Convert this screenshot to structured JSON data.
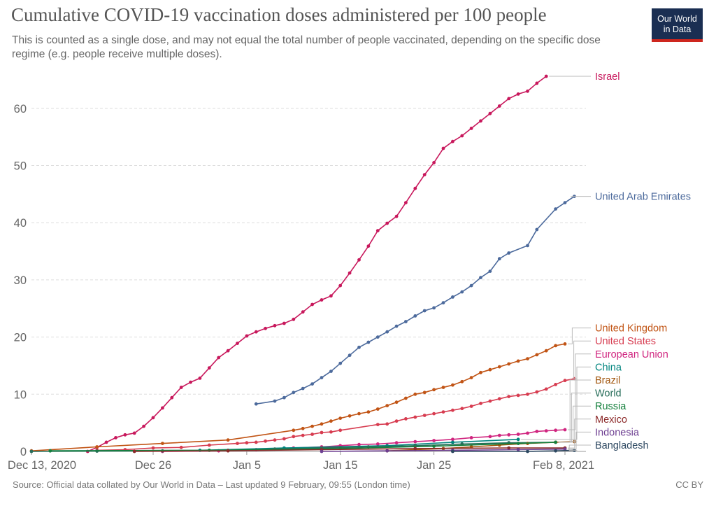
{
  "header": {
    "title": "Cumulative COVID-19 vaccination doses administered per 100 people",
    "subtitle": "This is counted as a single dose, and may not equal the total number of people vaccinated, depending on the specific dose regime (e.g. people receive multiple doses)."
  },
  "logo": {
    "line1": "Our World",
    "line2": "in Data"
  },
  "footer": {
    "source": "Source: Official data collated by Our World in Data – Last updated 9 February, 09:55 (London time)",
    "license": "CC BY"
  },
  "chart_data": {
    "type": "line",
    "title": "Cumulative COVID-19 vaccination doses administered per 100 people",
    "xlabel": "",
    "ylabel": "",
    "x_range": [
      "2020-12-13",
      "2021-02-08"
    ],
    "ylim": [
      0,
      66
    ],
    "yticks": [
      0,
      10,
      20,
      30,
      40,
      50,
      60
    ],
    "xticks": [
      {
        "date": "2020-12-13",
        "label": "Dec 13, 2020"
      },
      {
        "date": "2020-12-26",
        "label": "Dec 26"
      },
      {
        "date": "2021-01-05",
        "label": "Jan 5"
      },
      {
        "date": "2021-01-15",
        "label": "Jan 15"
      },
      {
        "date": "2021-01-25",
        "label": "Jan 25"
      },
      {
        "date": "2021-02-08",
        "label": "Feb 8, 2021"
      }
    ],
    "grid": true,
    "legend": "right, labels at line ends",
    "series": [
      {
        "name": "Israel",
        "color": "#c8185c",
        "start": "2020-12-19",
        "values": [
          0,
          0.7,
          1.6,
          2.4,
          2.9,
          3.2,
          4.4,
          5.9,
          7.6,
          9.4,
          11.2,
          12.1,
          12.8,
          14.6,
          16.4,
          17.6,
          18.9,
          20.2,
          20.9,
          21.5,
          22.0,
          22.4,
          23.1,
          24.4,
          25.7,
          26.5,
          27.2,
          29.0,
          31.2,
          33.5,
          35.9,
          38.6,
          39.9,
          41.1,
          43.5,
          46.0,
          48.4,
          50.5,
          53.0,
          54.2,
          55.2,
          56.5,
          57.8,
          59.1,
          60.4,
          61.7,
          62.5,
          63.0,
          64.4,
          65.6
        ]
      },
      {
        "name": "United Arab Emirates",
        "color": "#4c6a9c",
        "points": [
          [
            "2021-01-06",
            8.3
          ],
          [
            "2021-01-08",
            8.8
          ],
          [
            "2021-01-09",
            9.4
          ],
          [
            "2021-01-10",
            10.3
          ],
          [
            "2021-01-11",
            11.0
          ],
          [
            "2021-01-12",
            11.8
          ],
          [
            "2021-01-13",
            12.9
          ],
          [
            "2021-01-14",
            14.0
          ],
          [
            "2021-01-15",
            15.4
          ],
          [
            "2021-01-16",
            16.8
          ],
          [
            "2021-01-17",
            18.2
          ],
          [
            "2021-01-18",
            19.1
          ],
          [
            "2021-01-19",
            20.0
          ],
          [
            "2021-01-20",
            20.9
          ],
          [
            "2021-01-21",
            21.9
          ],
          [
            "2021-01-22",
            22.7
          ],
          [
            "2021-01-23",
            23.7
          ],
          [
            "2021-01-24",
            24.6
          ],
          [
            "2021-01-25",
            25.1
          ],
          [
            "2021-01-26",
            26.0
          ],
          [
            "2021-01-27",
            27.0
          ],
          [
            "2021-01-28",
            27.9
          ],
          [
            "2021-01-29",
            29.0
          ],
          [
            "2021-01-30",
            30.4
          ],
          [
            "2021-01-31",
            31.5
          ],
          [
            "2021-02-01",
            33.7
          ],
          [
            "2021-02-02",
            34.7
          ],
          [
            "2021-02-04",
            36.0
          ],
          [
            "2021-02-05",
            38.8
          ],
          [
            "2021-02-07",
            42.4
          ],
          [
            "2021-02-08",
            43.5
          ],
          [
            "2021-02-09",
            44.6
          ]
        ]
      },
      {
        "name": "United Kingdom",
        "color": "#c15415",
        "points": [
          [
            "2020-12-13",
            0.1
          ],
          [
            "2020-12-20",
            0.8
          ],
          [
            "2020-12-27",
            1.4
          ],
          [
            "2021-01-03",
            2.0
          ],
          [
            "2021-01-10",
            3.7
          ],
          [
            "2021-01-11",
            4.0
          ],
          [
            "2021-01-12",
            4.4
          ],
          [
            "2021-01-13",
            4.8
          ],
          [
            "2021-01-14",
            5.3
          ],
          [
            "2021-01-15",
            5.8
          ],
          [
            "2021-01-16",
            6.2
          ],
          [
            "2021-01-17",
            6.6
          ],
          [
            "2021-01-18",
            6.9
          ],
          [
            "2021-01-19",
            7.4
          ],
          [
            "2021-01-20",
            8.0
          ],
          [
            "2021-01-21",
            8.6
          ],
          [
            "2021-01-22",
            9.3
          ],
          [
            "2021-01-23",
            10.0
          ],
          [
            "2021-01-24",
            10.3
          ],
          [
            "2021-01-25",
            10.8
          ],
          [
            "2021-01-26",
            11.2
          ],
          [
            "2021-01-27",
            11.6
          ],
          [
            "2021-01-28",
            12.2
          ],
          [
            "2021-01-29",
            12.9
          ],
          [
            "2021-01-30",
            13.8
          ],
          [
            "2021-01-31",
            14.3
          ],
          [
            "2021-02-01",
            14.8
          ],
          [
            "2021-02-02",
            15.3
          ],
          [
            "2021-02-03",
            15.8
          ],
          [
            "2021-02-04",
            16.2
          ],
          [
            "2021-02-05",
            16.9
          ],
          [
            "2021-02-06",
            17.6
          ],
          [
            "2021-02-07",
            18.5
          ],
          [
            "2021-02-08",
            18.8
          ]
        ]
      },
      {
        "name": "United States",
        "color": "#d73c50",
        "points": [
          [
            "2020-12-20",
            0.2
          ],
          [
            "2020-12-23",
            0.3
          ],
          [
            "2020-12-26",
            0.6
          ],
          [
            "2020-12-29",
            0.7
          ],
          [
            "2021-01-01",
            1.1
          ],
          [
            "2021-01-04",
            1.4
          ],
          [
            "2021-01-05",
            1.5
          ],
          [
            "2021-01-06",
            1.6
          ],
          [
            "2021-01-07",
            1.8
          ],
          [
            "2021-01-08",
            2.0
          ],
          [
            "2021-01-09",
            2.2
          ],
          [
            "2021-01-10",
            2.6
          ],
          [
            "2021-01-11",
            2.8
          ],
          [
            "2021-01-12",
            3.0
          ],
          [
            "2021-01-13",
            3.3
          ],
          [
            "2021-01-14",
            3.4
          ],
          [
            "2021-01-15",
            3.7
          ],
          [
            "2021-01-19",
            4.7
          ],
          [
            "2021-01-20",
            4.8
          ],
          [
            "2021-01-21",
            5.3
          ],
          [
            "2021-01-22",
            5.7
          ],
          [
            "2021-01-23",
            6.0
          ],
          [
            "2021-01-24",
            6.3
          ],
          [
            "2021-01-25",
            6.6
          ],
          [
            "2021-01-26",
            6.9
          ],
          [
            "2021-01-27",
            7.2
          ],
          [
            "2021-01-28",
            7.5
          ],
          [
            "2021-01-29",
            7.9
          ],
          [
            "2021-01-30",
            8.4
          ],
          [
            "2021-01-31",
            8.8
          ],
          [
            "2021-02-01",
            9.2
          ],
          [
            "2021-02-02",
            9.6
          ],
          [
            "2021-02-03",
            9.8
          ],
          [
            "2021-02-04",
            10.0
          ],
          [
            "2021-02-05",
            10.4
          ],
          [
            "2021-02-06",
            10.9
          ],
          [
            "2021-02-07",
            11.7
          ],
          [
            "2021-02-08",
            12.4
          ],
          [
            "2021-02-09",
            12.7
          ]
        ]
      },
      {
        "name": "European Union",
        "color": "#d0257f",
        "points": [
          [
            "2020-12-27",
            0.0
          ],
          [
            "2021-01-02",
            0.1
          ],
          [
            "2021-01-06",
            0.3
          ],
          [
            "2021-01-10",
            0.6
          ],
          [
            "2021-01-13",
            0.8
          ],
          [
            "2021-01-15",
            1.0
          ],
          [
            "2021-01-17",
            1.2
          ],
          [
            "2021-01-19",
            1.3
          ],
          [
            "2021-01-21",
            1.5
          ],
          [
            "2021-01-23",
            1.7
          ],
          [
            "2021-01-25",
            1.9
          ],
          [
            "2021-01-27",
            2.1
          ],
          [
            "2021-01-29",
            2.4
          ],
          [
            "2021-01-31",
            2.6
          ],
          [
            "2021-02-01",
            2.8
          ],
          [
            "2021-02-02",
            2.9
          ],
          [
            "2021-02-03",
            3.0
          ],
          [
            "2021-02-04",
            3.2
          ],
          [
            "2021-02-05",
            3.5
          ],
          [
            "2021-02-06",
            3.6
          ],
          [
            "2021-02-07",
            3.7
          ],
          [
            "2021-02-08",
            3.8
          ]
        ]
      },
      {
        "name": "China",
        "color": "#00847e",
        "points": [
          [
            "2020-12-15",
            0.1
          ],
          [
            "2020-12-31",
            0.2
          ],
          [
            "2021-01-09",
            0.6
          ],
          [
            "2021-01-20",
            1.0
          ],
          [
            "2021-01-27",
            1.6
          ],
          [
            "2021-02-03",
            2.1
          ]
        ]
      },
      {
        "name": "World",
        "color": "#286e5a",
        "points": [
          [
            "2020-12-13",
            0.0
          ],
          [
            "2020-12-20",
            0.05
          ],
          [
            "2020-12-27",
            0.1
          ],
          [
            "2021-01-03",
            0.2
          ],
          [
            "2021-01-08",
            0.4
          ],
          [
            "2021-01-13",
            0.6
          ],
          [
            "2021-01-18",
            0.8
          ],
          [
            "2021-01-23",
            1.0
          ],
          [
            "2021-01-28",
            1.3
          ],
          [
            "2021-02-02",
            1.5
          ],
          [
            "2021-02-07",
            1.6
          ]
        ]
      },
      {
        "name": "Brazil",
        "color": "#a2560e",
        "points": [
          [
            "2021-01-20",
            0.1
          ],
          [
            "2021-01-23",
            0.3
          ],
          [
            "2021-01-26",
            0.5
          ],
          [
            "2021-01-29",
            0.8
          ],
          [
            "2021-02-01",
            1.1
          ],
          [
            "2021-02-04",
            1.4
          ],
          [
            "2021-02-07",
            1.6
          ],
          [
            "2021-02-09",
            1.7
          ]
        ]
      },
      {
        "name": "Russia",
        "color": "#15803d",
        "points": [
          [
            "2020-12-15",
            0.1
          ],
          [
            "2021-01-01",
            0.2
          ],
          [
            "2021-01-15",
            0.5
          ],
          [
            "2021-01-25",
            0.9
          ],
          [
            "2021-02-03",
            1.4
          ],
          [
            "2021-02-07",
            1.6
          ]
        ]
      },
      {
        "name": "Mexico",
        "color": "#8c2a2a",
        "points": [
          [
            "2020-12-24",
            0.0
          ],
          [
            "2021-01-03",
            0.1
          ],
          [
            "2021-01-13",
            0.3
          ],
          [
            "2021-01-23",
            0.5
          ],
          [
            "2021-02-02",
            0.6
          ],
          [
            "2021-02-08",
            0.6
          ]
        ]
      },
      {
        "name": "Indonesia",
        "color": "#6d3e91",
        "points": [
          [
            "2021-01-13",
            0.0
          ],
          [
            "2021-01-20",
            0.1
          ],
          [
            "2021-01-27",
            0.2
          ],
          [
            "2021-02-03",
            0.3
          ],
          [
            "2021-02-08",
            0.4
          ]
        ]
      },
      {
        "name": "Bangladesh",
        "color": "#2d4861",
        "points": [
          [
            "2021-01-27",
            0.0
          ],
          [
            "2021-02-04",
            0.0
          ],
          [
            "2021-02-07",
            0.1
          ],
          [
            "2021-02-09",
            0.2
          ]
        ]
      }
    ]
  }
}
